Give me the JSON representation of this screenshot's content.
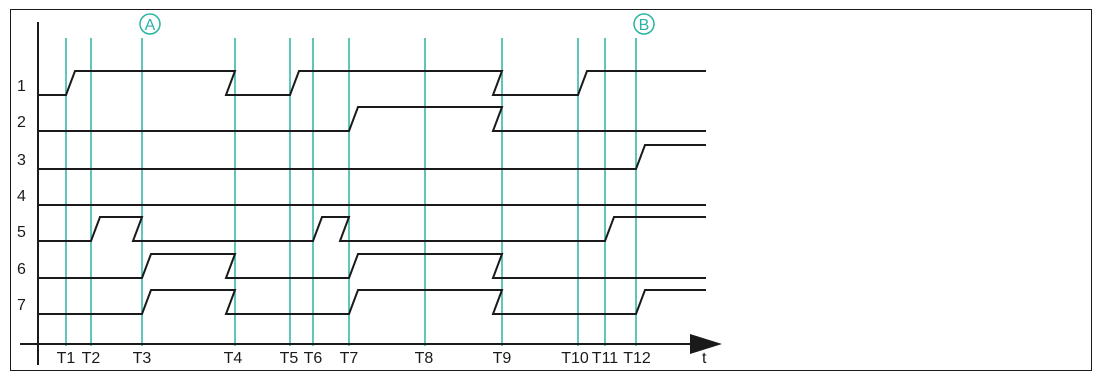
{
  "diagram": {
    "signals": [
      {
        "label": "1",
        "transitions": [
          [
            "T1",
            1
          ],
          [
            "T4",
            0
          ],
          [
            "T5",
            1
          ],
          [
            "T9",
            0
          ],
          [
            "T10",
            1
          ]
        ],
        "initial": 0
      },
      {
        "label": "2",
        "transitions": [
          [
            "T7",
            1
          ],
          [
            "T9",
            0
          ]
        ],
        "initial": 0
      },
      {
        "label": "3",
        "transitions": [
          [
            "T12",
            1
          ]
        ],
        "initial": 0
      },
      {
        "label": "4",
        "transitions": [],
        "initial": 0
      },
      {
        "label": "5",
        "transitions": [
          [
            "T2",
            1
          ],
          [
            "T3",
            0
          ],
          [
            "T6",
            1
          ],
          [
            "T7",
            0
          ],
          [
            "T11",
            1
          ]
        ],
        "initial": 0
      },
      {
        "label": "6",
        "transitions": [
          [
            "T3",
            1
          ],
          [
            "T4",
            0
          ],
          [
            "T7",
            1
          ],
          [
            "T9",
            0
          ]
        ],
        "initial": 0
      },
      {
        "label": "7",
        "transitions": [
          [
            "T3",
            1
          ],
          [
            "T4",
            0
          ],
          [
            "T7",
            1
          ],
          [
            "T9",
            0
          ],
          [
            "T12",
            1
          ]
        ],
        "initial": 0
      }
    ],
    "time_markers": [
      "T1",
      "T2",
      "T3",
      "T4",
      "T5",
      "T6",
      "T7",
      "T8",
      "T9",
      "T10",
      "T11",
      "T12"
    ],
    "axis_label": "t",
    "callouts": [
      {
        "text": "A",
        "at": "T3"
      },
      {
        "text": "B",
        "at": "T12"
      }
    ],
    "colors": {
      "signal": "#1a1a1a",
      "marker": "#2bb3a3"
    }
  }
}
